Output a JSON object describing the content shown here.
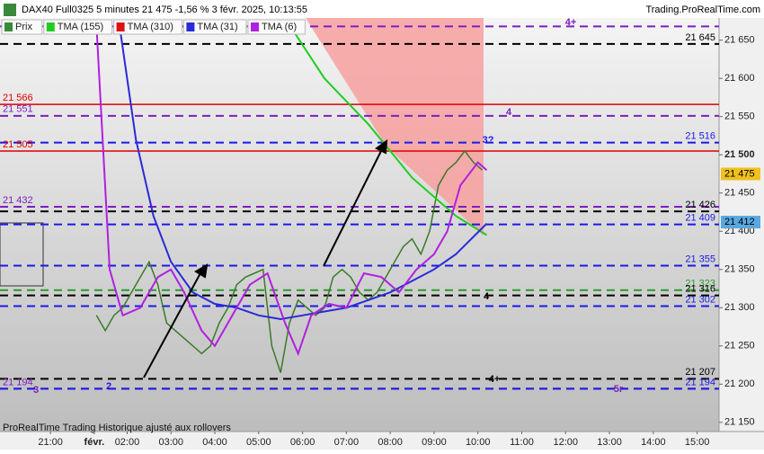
{
  "chart_data": {
    "type": "line",
    "title": "DAX40 Full0325 5 minutes 21 475 -1,56 % 3 févr. 2025, 10:13:55",
    "source": "Trading.ProRealTime.com",
    "footer": "ProRealTime Trading  Historique ajusté aux rollovers",
    "xlim": [
      -0.9,
      15.5
    ],
    "xticks": [
      {
        "value": 0.25,
        "label": "21:00"
      },
      {
        "value": 1.25,
        "label": "févr."
      },
      {
        "value": 2,
        "label": "02:00"
      },
      {
        "value": 3,
        "label": "03:00"
      },
      {
        "value": 4,
        "label": "04:00"
      },
      {
        "value": 5,
        "label": "05:00"
      },
      {
        "value": 6,
        "label": "06:00"
      },
      {
        "value": 7,
        "label": "07:00"
      },
      {
        "value": 8,
        "label": "08:00"
      },
      {
        "value": 9,
        "label": "09:00"
      },
      {
        "value": 10,
        "label": "10:00"
      },
      {
        "value": 11,
        "label": "11:00"
      },
      {
        "value": 12,
        "label": "12:00"
      },
      {
        "value": 13,
        "label": "13:00"
      },
      {
        "value": 14,
        "label": "14:00"
      },
      {
        "value": 15,
        "label": "15:00"
      }
    ],
    "ylim": [
      21138,
      21679
    ],
    "yticks": [
      {
        "value": 21150,
        "label": "21 150"
      },
      {
        "value": 21200,
        "label": "21 200"
      },
      {
        "value": 21250,
        "label": "21 250"
      },
      {
        "value": 21300,
        "label": "21 300"
      },
      {
        "value": 21350,
        "label": "21 350"
      },
      {
        "value": 21400,
        "label": "21 400"
      },
      {
        "value": 21450,
        "label": "21 450"
      },
      {
        "value": 21500,
        "label": "21 500"
      },
      {
        "value": 21550,
        "label": "21 550"
      },
      {
        "value": 21600,
        "label": "21 600"
      },
      {
        "value": 21650,
        "label": "21 650"
      }
    ],
    "legend": [
      {
        "name": "Prix",
        "color": "#3a8a3a"
      },
      {
        "name": "TMA (155)",
        "color": "#22cc22"
      },
      {
        "name": "TMA (310)",
        "color": "#e01010"
      },
      {
        "name": "TMA (31)",
        "color": "#2a2ad8"
      },
      {
        "name": "TMA (6)",
        "color": "#b020e0"
      }
    ],
    "series": [
      {
        "name": "Prix",
        "color": "#3a7a2a",
        "x": [
          1.3,
          1.5,
          1.7,
          1.9,
          2.1,
          2.3,
          2.5,
          2.7,
          2.9,
          3.1,
          3.3,
          3.5,
          3.7,
          3.9,
          4.1,
          4.3,
          4.5,
          4.7,
          4.9,
          5.1,
          5.3,
          5.5,
          5.7,
          5.9,
          6.1,
          6.3,
          6.5,
          6.7,
          6.9,
          7.1,
          7.3,
          7.5,
          7.7,
          7.9,
          8.1,
          8.3,
          8.5,
          8.7,
          8.9,
          9.1,
          9.3,
          9.5,
          9.7,
          9.9,
          10.1
        ],
        "values": [
          21290,
          21270,
          21290,
          21300,
          21320,
          21340,
          21360,
          21330,
          21280,
          21270,
          21260,
          21250,
          21240,
          21250,
          21280,
          21300,
          21330,
          21340,
          21345,
          21350,
          21250,
          21215,
          21280,
          21310,
          21300,
          21290,
          21300,
          21340,
          21350,
          21340,
          21320,
          21310,
          21320,
          21340,
          21360,
          21380,
          21390,
          21370,
          21400,
          21460,
          21480,
          21490,
          21505,
          21490,
          21480
        ]
      },
      {
        "name": "TMA (155)",
        "color": "#22cc22",
        "x": [
          5.7,
          6.5,
          7.5,
          8.5,
          9.5,
          10.2
        ],
        "values": [
          21670,
          21600,
          21540,
          21470,
          21420,
          21395
        ]
      },
      {
        "name": "TMA (31)",
        "color": "#2a2ad8",
        "x": [
          1.85,
          2.2,
          2.6,
          3.0,
          3.5,
          4.0,
          4.5,
          5.0,
          5.5,
          6.0,
          6.5,
          7.0,
          7.5,
          8.0,
          8.5,
          9.0,
          9.5,
          10.2
        ],
        "values": [
          21660,
          21520,
          21420,
          21360,
          21320,
          21305,
          21300,
          21290,
          21285,
          21290,
          21295,
          21300,
          21310,
          21320,
          21335,
          21350,
          21370,
          21410
        ]
      },
      {
        "name": "TMA (6)",
        "color": "#b020e0",
        "x": [
          1.3,
          1.6,
          1.9,
          2.3,
          2.7,
          3.0,
          3.3,
          3.7,
          4.0,
          4.4,
          4.8,
          5.2,
          5.6,
          5.9,
          6.2,
          6.6,
          7.0,
          7.4,
          7.8,
          8.2,
          8.6,
          9.0,
          9.3,
          9.6,
          10.0,
          10.2
        ],
        "values": [
          21670,
          21350,
          21290,
          21300,
          21340,
          21350,
          21320,
          21270,
          21250,
          21290,
          21330,
          21345,
          21280,
          21240,
          21290,
          21305,
          21300,
          21345,
          21340,
          21320,
          21350,
          21370,
          21400,
          21460,
          21490,
          21480
        ]
      }
    ],
    "levels": [
      {
        "value": 21668,
        "color": "#7a1fc0",
        "style": "dashed"
      },
      {
        "value": 21645,
        "color": "#000000",
        "style": "dashed",
        "label": "21 645",
        "side": "right"
      },
      {
        "value": 21566,
        "color": "#e00000",
        "style": "solid",
        "label": "21 566",
        "side": "left"
      },
      {
        "value": 21551,
        "color": "#7a1fc0",
        "style": "dashed",
        "label": "21 551",
        "side": "left"
      },
      {
        "value": 21516,
        "color": "#1a1ae6",
        "style": "dashed",
        "label": "21 516",
        "side": "right"
      },
      {
        "value": 21505,
        "color": "#e00000",
        "style": "solid",
        "label": "21 505",
        "side": "left"
      },
      {
        "value": 21432,
        "color": "#7a1fc0",
        "style": "dashed",
        "label": "21 432",
        "side": "left"
      },
      {
        "value": 21426,
        "color": "#000000",
        "style": "dashed",
        "label": "21 426",
        "side": "right"
      },
      {
        "value": 21409,
        "color": "#1a1ae6",
        "style": "dashed",
        "label": "21 409",
        "side": "right"
      },
      {
        "value": 21355,
        "color": "#1a1ae6",
        "style": "dashed",
        "label": "21 355",
        "side": "right"
      },
      {
        "value": 21323,
        "color": "#2a9a2a",
        "style": "dashed",
        "label": "21 323",
        "side": "right"
      },
      {
        "value": 21316,
        "color": "#000000",
        "style": "dashed",
        "label": "21 316",
        "side": "right"
      },
      {
        "value": 21302,
        "color": "#1a1ae6",
        "style": "dashed",
        "label": "21 302",
        "side": "right"
      },
      {
        "value": 21207,
        "color": "#000000",
        "style": "dashed",
        "label": "21 207",
        "side": "right"
      },
      {
        "value": 21194,
        "color": "#7a1fc0",
        "style": "dashed",
        "label": "21 194",
        "side": "left"
      },
      {
        "value": 21194,
        "color": "#1a1ae6",
        "style": "dashed",
        "label": "21 194",
        "side": "right"
      }
    ],
    "price_tags": [
      {
        "value": 21475,
        "label": "21 475",
        "color": "#f0c020"
      },
      {
        "value": 21412,
        "label": "21 412",
        "color": "#5aa8e0"
      }
    ],
    "annotations": [
      {
        "text": "4+",
        "color": "#7a1fc0"
      },
      {
        "text": "4",
        "color": "#7a1fc0"
      },
      {
        "text": "3?",
        "color": "#1a1ae6"
      },
      {
        "text": "4",
        "color": "#000000"
      },
      {
        "text": "4+",
        "color": "#000000"
      },
      {
        "text": "5r",
        "color": "#7a1fc0"
      },
      {
        "text": "3",
        "color": "#7a1fc0"
      },
      {
        "text": "2",
        "color": "#1a1ae6"
      }
    ]
  }
}
